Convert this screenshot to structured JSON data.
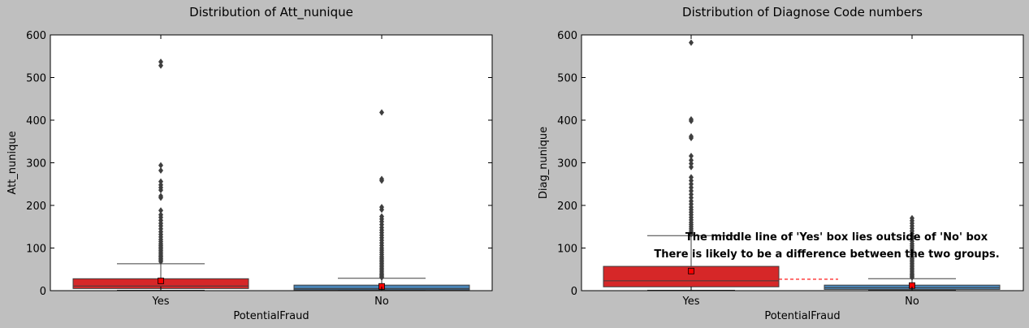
{
  "colors": {
    "background": "#bfbfbf",
    "yes_box": "#d62728",
    "no_box": "#4a85b8",
    "mean_marker": "#ff0000",
    "outlier": "#3f3f3f",
    "annotation_line": "#ff0000"
  },
  "chart_data": [
    {
      "type": "box",
      "title": "Distribution of Att_nunique",
      "xlabel": "PotentialFraud",
      "ylabel": "Att_nunique",
      "ylim": [
        0,
        600
      ],
      "yticks": [
        0,
        100,
        200,
        300,
        400,
        500,
        600
      ],
      "grid": false,
      "categories": [
        "Yes",
        "No"
      ],
      "boxes": [
        {
          "category": "Yes",
          "color": "#d62728",
          "q1": 5,
          "median": 11,
          "q3": 28,
          "whisker_low": 1,
          "whisker_high": 63,
          "mean": 23,
          "outliers": [
            68,
            72,
            75,
            79,
            82,
            86,
            90,
            94,
            98,
            102,
            106,
            110,
            115,
            120,
            126,
            132,
            138,
            145,
            152,
            158,
            165,
            172,
            178,
            188,
            218,
            222,
            236,
            242,
            248,
            256,
            282,
            294,
            528,
            537
          ]
        },
        {
          "category": "No",
          "color": "#4a85b8",
          "q1": 2,
          "median": 5,
          "q3": 13,
          "whisker_low": 1,
          "whisker_high": 29,
          "mean": 10,
          "outliers": [
            31,
            34,
            37,
            40,
            44,
            48,
            52,
            56,
            60,
            64,
            68,
            72,
            76,
            80,
            85,
            90,
            95,
            100,
            106,
            112,
            118,
            124,
            130,
            136,
            142,
            148,
            155,
            162,
            168,
            174,
            190,
            196,
            258,
            262,
            418
          ]
        }
      ]
    },
    {
      "type": "box",
      "title": "Distribution of Diagnose Code numbers",
      "xlabel": "PotentialFraud",
      "ylabel": "Diag_nunique",
      "ylim": [
        0,
        600
      ],
      "yticks": [
        0,
        100,
        200,
        300,
        400,
        500,
        600
      ],
      "grid": false,
      "categories": [
        "Yes",
        "No"
      ],
      "boxes": [
        {
          "category": "Yes",
          "color": "#d62728",
          "q1": 9,
          "median": 23,
          "q3": 57,
          "whisker_low": 1,
          "whisker_high": 129,
          "mean": 46,
          "outliers": [
            132,
            136,
            140,
            145,
            150,
            155,
            160,
            166,
            172,
            178,
            184,
            190,
            196,
            203,
            210,
            218,
            226,
            234,
            242,
            250,
            258,
            266,
            290,
            298,
            306,
            316,
            358,
            362,
            398,
            402,
            582
          ]
        },
        {
          "category": "No",
          "color": "#4a85b8",
          "q1": 3,
          "median": 7,
          "q3": 13,
          "whisker_low": 1,
          "whisker_high": 28,
          "mean": 12,
          "outliers": [
            31,
            34,
            37,
            40,
            44,
            48,
            52,
            56,
            60,
            64,
            68,
            72,
            76,
            80,
            85,
            90,
            95,
            100,
            105,
            110,
            116,
            122,
            128,
            134,
            140,
            146,
            152,
            158,
            164,
            170
          ]
        }
      ],
      "annotations": [
        "The middle line of 'Yes' box lies outside of 'No' box",
        "There is likely to be a difference between the two groups."
      ]
    }
  ]
}
